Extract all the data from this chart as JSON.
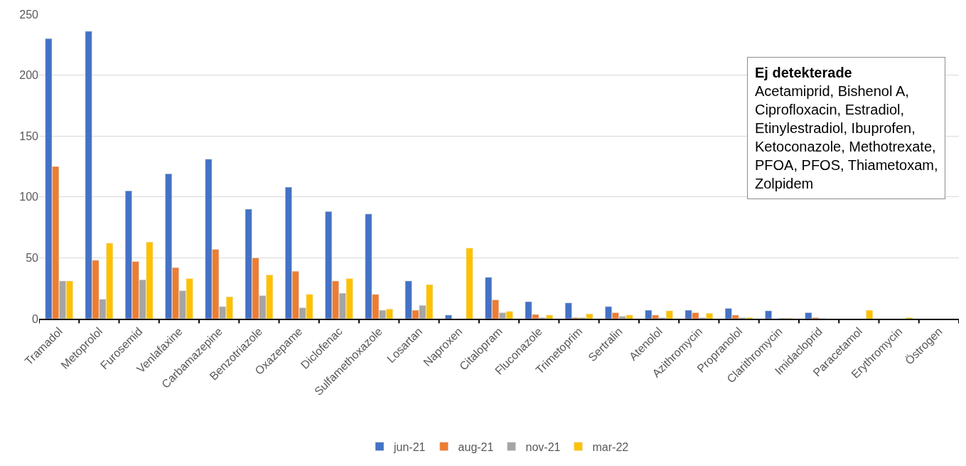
{
  "chart_data": {
    "type": "bar",
    "categories": [
      "Tramadol",
      "Metoprolol",
      "Furosemid",
      "Venlafaxine",
      "Carbamazepine",
      "Benzotriazole",
      "Oxazepame",
      "Diclofenac",
      "Sulfamethoxazole",
      "Losartan",
      "Naproxen",
      "Citalopram",
      "Fluconazole",
      "Trimetoprim",
      "Sertralin",
      "Atenolol",
      "Azithromycin",
      "Propranolol",
      "Clarithromycin",
      "Imidacloprid",
      "Paracetamol",
      "Erythromycin",
      "Östrogen"
    ],
    "series": [
      {
        "name": "jun-21",
        "color": "#4472c4",
        "values": [
          230,
          236,
          105,
          119,
          131,
          90,
          108,
          88,
          86,
          31,
          3,
          34,
          14,
          13,
          10,
          7,
          7,
          8.5,
          6.5,
          5,
          null,
          null,
          null
        ]
      },
      {
        "name": "aug-21",
        "color": "#ed7d31",
        "values": [
          125,
          48,
          47,
          42,
          57,
          50,
          39,
          31,
          20,
          7,
          null,
          15.5,
          3.5,
          1,
          5,
          3,
          5,
          3,
          null,
          1,
          null,
          null,
          null
        ]
      },
      {
        "name": "nov-21",
        "color": "#a5a5a5",
        "values": [
          31,
          16,
          32,
          23,
          10,
          19,
          9,
          21,
          7,
          11,
          null,
          5,
          1,
          1,
          2,
          1,
          1,
          1,
          0.5,
          0.3,
          null,
          null,
          null
        ]
      },
      {
        "name": "mar-22",
        "color": "#ffc000",
        "values": [
          31,
          62,
          63,
          33,
          18,
          36,
          20,
          33,
          8,
          28,
          58,
          6,
          3,
          4,
          3,
          6.5,
          4.5,
          1,
          0.5,
          null,
          7,
          1,
          null
        ]
      }
    ],
    "ylim": [
      0,
      250
    ],
    "yticks": [
      0,
      50,
      100,
      150,
      200,
      250
    ],
    "grid": "y",
    "legend": "bottom",
    "annotations": [
      "Ej detekterade",
      "Acetamiprid, Bishenol A, Ciprofloxacin, Estradiol, Etinylestradiol, Ibuprofen, Ketoconazole, Methotrexate, PFOA, PFOS, Thiametoxam, Zolpidem"
    ]
  }
}
